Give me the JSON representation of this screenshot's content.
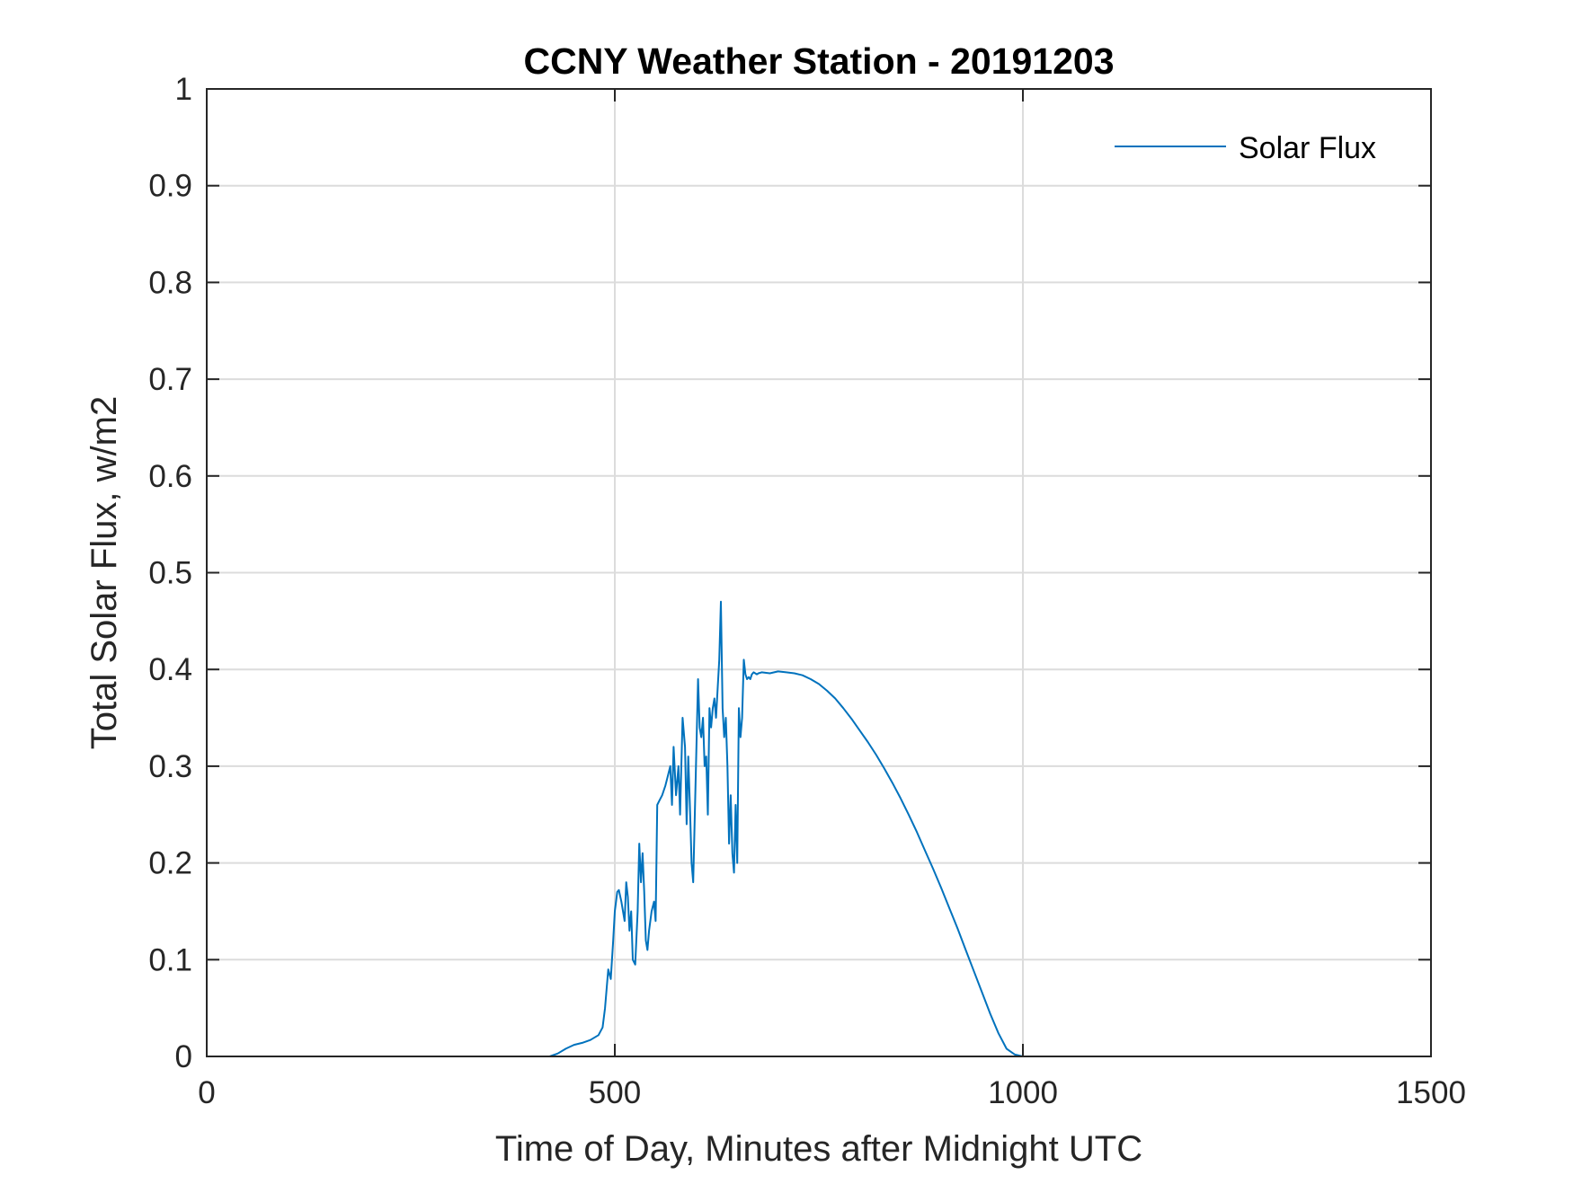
{
  "chart_data": {
    "type": "line",
    "title": "CCNY Weather Station - 20191203",
    "xlabel": "Time of Day, Minutes after Midnight UTC",
    "ylabel": "Total Solar Flux, w/m2",
    "xlim": [
      0,
      1500
    ],
    "ylim": [
      0,
      1
    ],
    "xticks": [
      0,
      500,
      1000,
      1500
    ],
    "xtick_labels": [
      "0",
      "500",
      "1000",
      "1500"
    ],
    "yticks": [
      0,
      0.1,
      0.2,
      0.3,
      0.4,
      0.5,
      0.6,
      0.7,
      0.8,
      0.9,
      1
    ],
    "ytick_labels": [
      "0",
      "0.1",
      "0.2",
      "0.3",
      "0.4",
      "0.5",
      "0.6",
      "0.7",
      "0.8",
      "0.9",
      "1"
    ],
    "grid": true,
    "legend": {
      "position": "top-right",
      "entries": [
        "Solar Flux"
      ]
    },
    "series": [
      {
        "name": "Solar Flux",
        "color": "#0072bd",
        "x": [
          0,
          420,
          430,
          440,
          450,
          460,
          470,
          480,
          485,
          488,
          490,
          492,
          495,
          498,
          500,
          503,
          505,
          508,
          510,
          512,
          514,
          516,
          518,
          520,
          522,
          525,
          528,
          530,
          532,
          534,
          536,
          538,
          540,
          542,
          545,
          548,
          550,
          552,
          555,
          558,
          560,
          562,
          565,
          568,
          570,
          572,
          575,
          578,
          580,
          583,
          586,
          588,
          590,
          592,
          594,
          596,
          598,
          600,
          602,
          604,
          606,
          608,
          610,
          612,
          614,
          616,
          618,
          620,
          622,
          624,
          626,
          628,
          630,
          632,
          634,
          636,
          638,
          640,
          642,
          644,
          646,
          648,
          650,
          652,
          654,
          656,
          658,
          660,
          662,
          664,
          666,
          668,
          670,
          672,
          674,
          676,
          680,
          690,
          700,
          710,
          720,
          730,
          740,
          750,
          760,
          770,
          780,
          790,
          800,
          810,
          820,
          830,
          840,
          850,
          860,
          870,
          880,
          890,
          900,
          910,
          920,
          930,
          940,
          950,
          960,
          970,
          980,
          990,
          1000,
          1010,
          1100,
          1200,
          1300,
          1440
        ],
        "values": [
          0,
          0,
          0.003,
          0.008,
          0.012,
          0.014,
          0.017,
          0.022,
          0.03,
          0.05,
          0.07,
          0.09,
          0.08,
          0.12,
          0.15,
          0.17,
          0.172,
          0.16,
          0.15,
          0.14,
          0.18,
          0.165,
          0.13,
          0.15,
          0.1,
          0.095,
          0.15,
          0.22,
          0.18,
          0.21,
          0.17,
          0.12,
          0.11,
          0.13,
          0.15,
          0.16,
          0.14,
          0.26,
          0.265,
          0.27,
          0.275,
          0.28,
          0.29,
          0.3,
          0.26,
          0.32,
          0.27,
          0.3,
          0.25,
          0.35,
          0.32,
          0.24,
          0.31,
          0.26,
          0.2,
          0.18,
          0.25,
          0.32,
          0.39,
          0.34,
          0.33,
          0.35,
          0.3,
          0.31,
          0.25,
          0.36,
          0.34,
          0.36,
          0.37,
          0.35,
          0.38,
          0.41,
          0.47,
          0.36,
          0.33,
          0.35,
          0.3,
          0.22,
          0.27,
          0.21,
          0.19,
          0.26,
          0.2,
          0.36,
          0.33,
          0.35,
          0.41,
          0.395,
          0.39,
          0.392,
          0.39,
          0.395,
          0.397,
          0.396,
          0.395,
          0.396,
          0.397,
          0.396,
          0.398,
          0.397,
          0.396,
          0.394,
          0.39,
          0.385,
          0.378,
          0.37,
          0.36,
          0.349,
          0.337,
          0.325,
          0.312,
          0.298,
          0.283,
          0.267,
          0.25,
          0.232,
          0.213,
          0.194,
          0.174,
          0.153,
          0.132,
          0.11,
          0.088,
          0.066,
          0.044,
          0.024,
          0.008,
          0.002,
          0,
          0,
          0,
          0,
          0,
          0
        ]
      }
    ]
  }
}
